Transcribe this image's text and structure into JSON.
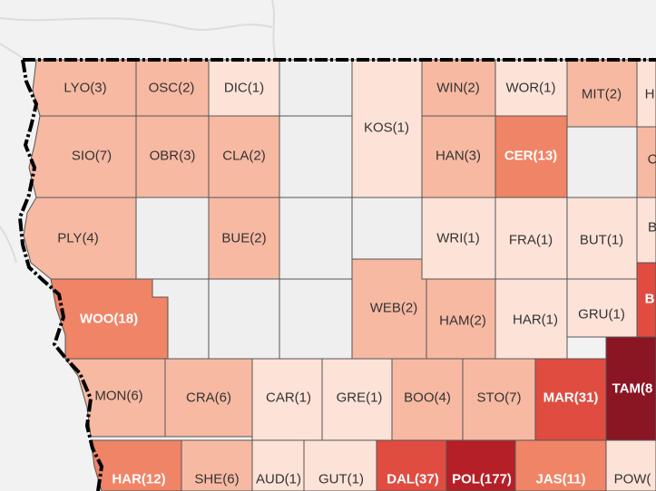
{
  "map": {
    "colors": {
      "background": "#f2f2f2",
      "no_data": "#efefef",
      "state_border": "#000000",
      "county_border": "#555555",
      "level_1": "#fde2d8",
      "level_2": "#f7b9a2",
      "level_3": "#f08466",
      "level_4": "#e04c40",
      "level_5": "#b51f27",
      "level_6": "#8a1624"
    },
    "counties": [
      {
        "label": "LYO(3)",
        "level": "level_2"
      },
      {
        "label": "OSC(2)",
        "level": "level_2"
      },
      {
        "label": "DIC(1)",
        "level": "level_1"
      },
      {
        "label": "KOS(1)",
        "level": "level_1"
      },
      {
        "label": "WIN(2)",
        "level": "level_2"
      },
      {
        "label": "WOR(1)",
        "level": "level_1"
      },
      {
        "label": "MIT(2)",
        "level": "level_2"
      },
      {
        "label": "H",
        "level": "level_1"
      },
      {
        "label": "SIO(7)",
        "level": "level_2"
      },
      {
        "label": "OBR(3)",
        "level": "level_2"
      },
      {
        "label": "CLA(2)",
        "level": "level_2"
      },
      {
        "label": "HAN(3)",
        "level": "level_2"
      },
      {
        "label": "CER(13)",
        "level": "level_3"
      },
      {
        "label": "C",
        "level": "level_2"
      },
      {
        "label": "PLY(4)",
        "level": "level_2"
      },
      {
        "label": "BUE(2)",
        "level": "level_2"
      },
      {
        "label": "WRI(1)",
        "level": "level_1"
      },
      {
        "label": "FRA(1)",
        "level": "level_1"
      },
      {
        "label": "BUT(1)",
        "level": "level_1"
      },
      {
        "label": "B",
        "level": "level_1"
      },
      {
        "label": "WOO(18)",
        "level": "level_3"
      },
      {
        "label": "WEB(2)",
        "level": "level_2"
      },
      {
        "label": "HAM(2)",
        "level": "level_2"
      },
      {
        "label": "HAR(1)",
        "level": "level_1"
      },
      {
        "label": "GRU(1)",
        "level": "level_1"
      },
      {
        "label": "B",
        "level": "level_4"
      },
      {
        "label": "MON(6)",
        "level": "level_2"
      },
      {
        "label": "CRA(6)",
        "level": "level_2"
      },
      {
        "label": "CAR(1)",
        "level": "level_1"
      },
      {
        "label": "GRE(1)",
        "level": "level_1"
      },
      {
        "label": "BOO(4)",
        "level": "level_2"
      },
      {
        "label": "STO(7)",
        "level": "level_2"
      },
      {
        "label": "MAR(31)",
        "level": "level_4"
      },
      {
        "label": "TAM(8",
        "level": "level_6"
      },
      {
        "label": "HAR(12)",
        "level": "level_3"
      },
      {
        "label": "SHE(6)",
        "level": "level_2"
      },
      {
        "label": "AUD(1)",
        "level": "level_1"
      },
      {
        "label": "GUT(1)",
        "level": "level_1"
      },
      {
        "label": "DAL(37)",
        "level": "level_4"
      },
      {
        "label": "POL(177)",
        "level": "level_5"
      },
      {
        "label": "JAS(11)",
        "level": "level_3"
      },
      {
        "label": "POW(",
        "level": "level_1"
      }
    ]
  }
}
